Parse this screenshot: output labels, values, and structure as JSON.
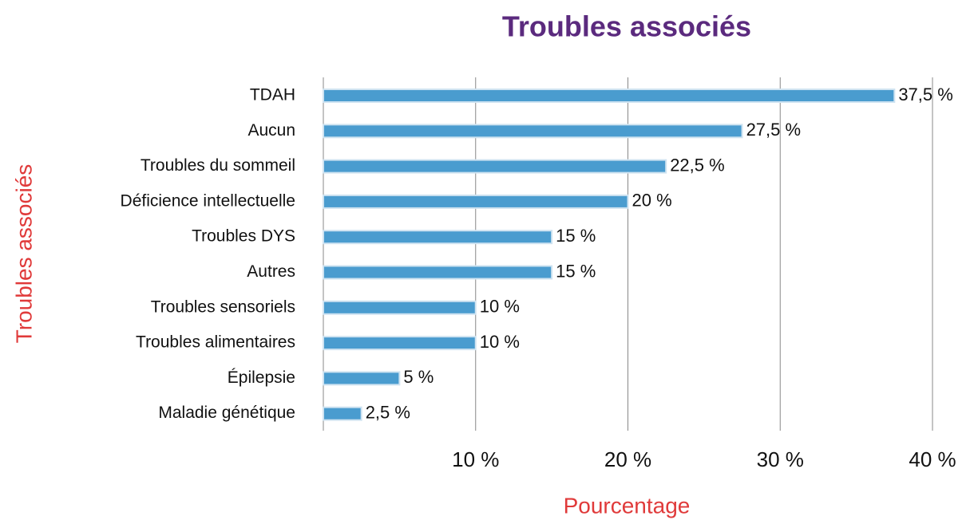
{
  "chart_data": {
    "type": "bar",
    "orientation": "horizontal",
    "title": "Troubles associés",
    "xlabel": "Pourcentage",
    "ylabel": "Troubles associés",
    "categories": [
      "TDAH",
      "Aucun",
      "Troubles du sommeil",
      "Déficience intellectuelle",
      "Troubles DYS",
      "Autres",
      "Troubles sensoriels",
      "Troubles alimentaires",
      "Épilepsie",
      "Maladie génétique"
    ],
    "values": [
      37.5,
      27.5,
      22.5,
      20,
      15,
      15,
      10,
      10,
      5,
      2.5
    ],
    "value_labels": [
      "37,5 %",
      "27,5 %",
      "22,5 %",
      "20 %",
      "15 %",
      "15 %",
      "10 %",
      "10 %",
      "5 %",
      "2,5 %"
    ],
    "color": "#4a9ccf",
    "xlim": [
      0,
      40
    ],
    "xticks": [
      {
        "value": 10,
        "label": "10 %"
      },
      {
        "value": 20,
        "label": "20 %"
      },
      {
        "value": 30,
        "label": "30 %"
      },
      {
        "value": 40,
        "label": "40 %"
      }
    ],
    "grid": true
  }
}
